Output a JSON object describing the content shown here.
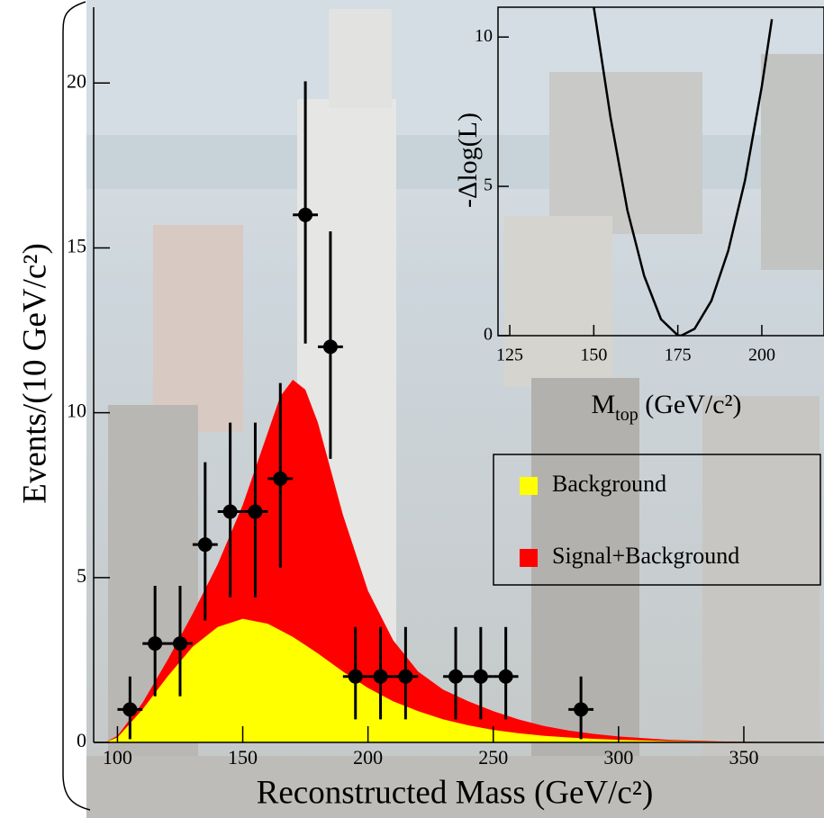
{
  "chart_data": [
    {
      "type": "errorbar",
      "xlabel": "Reconstructed Mass (GeV/c²)",
      "ylabel": "Events/(10 GeV/c²)",
      "xlim": [
        90.5,
        382
      ],
      "ylim": [
        0,
        22.3
      ],
      "xticks": [
        100,
        150,
        200,
        250,
        300,
        350
      ],
      "yticks": [
        0,
        5,
        10,
        15,
        20
      ],
      "legend": "right",
      "curves": {
        "x": [
          95,
          100,
          110,
          120,
          130,
          140,
          150,
          160,
          165,
          170,
          175,
          180,
          190,
          200,
          210,
          220,
          230,
          240,
          250,
          260,
          270,
          280,
          290,
          300,
          320,
          340,
          360,
          380
        ],
        "series": [
          {
            "name": "Background",
            "color": "#ffff00",
            "values": [
              0,
              0.15,
              1.0,
              2.0,
              2.9,
              3.5,
              3.75,
              3.6,
              3.4,
              3.2,
              2.95,
              2.7,
              2.15,
              1.65,
              1.25,
              0.95,
              0.7,
              0.52,
              0.38,
              0.28,
              0.2,
              0.15,
              0.11,
              0.08,
              0.04,
              0.02,
              0.01,
              0
            ]
          },
          {
            "name": "Signal+Background",
            "color": "#ff0000",
            "values": [
              0,
              0.2,
              1.2,
              2.5,
              3.9,
              5.4,
              7.2,
              9.4,
              10.5,
              11.0,
              10.7,
              9.7,
              6.9,
              4.6,
              3.1,
              2.15,
              1.6,
              1.25,
              0.95,
              0.7,
              0.5,
              0.36,
              0.26,
              0.18,
              0.08,
              0.03,
              0.01,
              0
            ]
          }
        ]
      },
      "points": {
        "color": "#000000",
        "x": [
          105,
          115,
          125,
          135,
          145,
          155,
          165,
          175,
          185,
          195,
          205,
          215,
          235,
          245,
          255,
          285
        ],
        "values": [
          1,
          3,
          3,
          6,
          7,
          7,
          8,
          16,
          12,
          2,
          2,
          2,
          2,
          2,
          2,
          1
        ],
        "err_low": [
          0.9,
          1.6,
          1.6,
          2.3,
          2.6,
          2.6,
          2.7,
          3.9,
          3.4,
          1.3,
          1.3,
          1.3,
          1.3,
          1.3,
          1.3,
          0.9
        ],
        "err_high": [
          1.0,
          1.75,
          1.75,
          2.5,
          2.7,
          2.7,
          2.9,
          4.05,
          3.5,
          1.5,
          1.5,
          1.5,
          1.5,
          1.5,
          1.5,
          1.0
        ],
        "xerr": 5
      }
    },
    {
      "type": "line",
      "xlabel": [
        "M",
        "top",
        " (GeV/c²)"
      ],
      "ylabel": "-Δlog(L)",
      "xlim": [
        121.5,
        218.5
      ],
      "ylim": [
        0,
        11
      ],
      "xticks": [
        125,
        150,
        175,
        200
      ],
      "yticks": [
        0,
        5,
        10
      ],
      "series": [
        {
          "color": "#000000",
          "x": [
            150,
            155,
            160,
            165,
            170,
            175,
            176,
            180,
            185,
            190,
            195,
            200,
            203
          ],
          "values": [
            11.0,
            7.3,
            4.2,
            2.0,
            0.55,
            0.01,
            0,
            0.23,
            1.17,
            2.84,
            5.2,
            8.35,
            10.6
          ]
        }
      ]
    }
  ]
}
